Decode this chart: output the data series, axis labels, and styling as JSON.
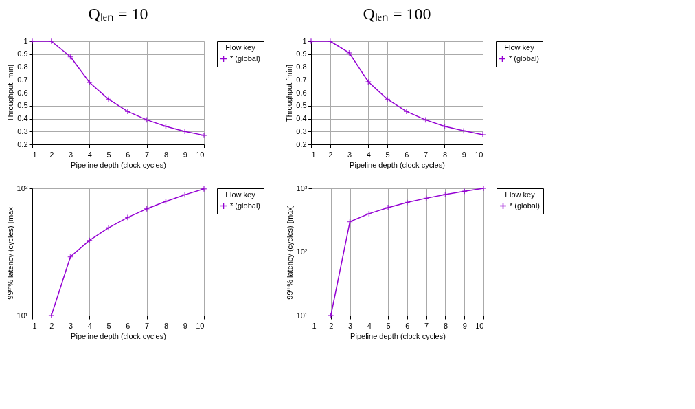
{
  "chart_data": [
    {
      "type": "line",
      "title": "Qₗₑₙ = 10",
      "xlabel": "Pipeline depth (clock cycles)",
      "ylabel": "Throughput [min]",
      "legend_title": "Flow key",
      "legend": "right",
      "marker": "cross",
      "line_style": "solid",
      "grid": true,
      "x": [
        1,
        2,
        3,
        4,
        5,
        6,
        7,
        8,
        9,
        10
      ],
      "series": [
        {
          "name": "* (global)",
          "color": "#9400d3",
          "values": [
            1,
            1,
            0.88,
            0.68,
            0.55,
            0.455,
            0.39,
            0.34,
            0.3,
            0.27
          ]
        }
      ],
      "xlim": [
        1,
        10
      ],
      "xticks": [
        1,
        2,
        3,
        4,
        5,
        6,
        7,
        8,
        9,
        10
      ],
      "ylim": [
        0.2,
        1
      ],
      "yticks": [
        0.2,
        0.3,
        0.4,
        0.5,
        0.6,
        0.7,
        0.8,
        0.9,
        1
      ]
    },
    {
      "type": "line",
      "title": "Qₗₑₙ = 100",
      "xlabel": "Pipeline depth (clock cycles)",
      "ylabel": "Throughput [min]",
      "legend_title": "Flow key",
      "legend": "right",
      "marker": "cross",
      "line_style": "solid",
      "grid": true,
      "x": [
        1,
        2,
        3,
        4,
        5,
        6,
        7,
        8,
        9,
        10
      ],
      "series": [
        {
          "name": "* (global)",
          "color": "#9400d3",
          "values": [
            1,
            1,
            0.91,
            0.685,
            0.55,
            0.455,
            0.39,
            0.34,
            0.305,
            0.275
          ]
        }
      ],
      "xlim": [
        1,
        10
      ],
      "xticks": [
        1,
        2,
        3,
        4,
        5,
        6,
        7,
        8,
        9,
        10
      ],
      "ylim": [
        0.2,
        1
      ],
      "yticks": [
        0.2,
        0.3,
        0.4,
        0.5,
        0.6,
        0.7,
        0.8,
        0.9,
        1
      ]
    },
    {
      "type": "line",
      "xlabel": "Pipeline depth (clock cycles)",
      "ylabel": "99ᵗʰ% latency (cycles) [max]",
      "legend_title": "Flow key",
      "legend": "right",
      "marker": "cross",
      "line_style": "solid",
      "grid": true,
      "log": true,
      "x": [
        2,
        3,
        4,
        5,
        6,
        7,
        8,
        9,
        10
      ],
      "series": [
        {
          "name": "* (global)",
          "color": "#9400d3",
          "values": [
            10,
            29,
            39,
            49,
            59,
            69,
            79,
            89,
            99
          ]
        }
      ],
      "xlim": [
        1,
        10
      ],
      "xticks": [
        1,
        2,
        3,
        4,
        5,
        6,
        7,
        8,
        9,
        10
      ],
      "ylim": [
        10,
        100
      ],
      "yticks": [
        {
          "value": 10,
          "label": "10¹"
        },
        {
          "value": 100,
          "label": "10²"
        }
      ]
    },
    {
      "type": "line",
      "xlabel": "Pipeline depth (clock cycles)",
      "ylabel": "99ᵗʰ% latency (cycles) [max]",
      "legend_title": "Flow key",
      "legend": "right",
      "marker": "cross",
      "line_style": "solid",
      "grid": true,
      "log": true,
      "x": [
        2,
        3,
        4,
        5,
        6,
        7,
        8,
        9,
        10
      ],
      "series": [
        {
          "name": "* (global)",
          "color": "#9400d3",
          "values": [
            10,
            299,
            399,
            499,
            599,
            699,
            799,
            899,
            999
          ]
        }
      ],
      "xlim": [
        1,
        10
      ],
      "xticks": [
        1,
        2,
        3,
        4,
        5,
        6,
        7,
        8,
        9,
        10
      ],
      "ylim": [
        10,
        1000
      ],
      "yticks": [
        {
          "value": 10,
          "label": "10¹"
        },
        {
          "value": 100,
          "label": "10²"
        },
        {
          "value": 1000,
          "label": "10³"
        }
      ]
    }
  ]
}
